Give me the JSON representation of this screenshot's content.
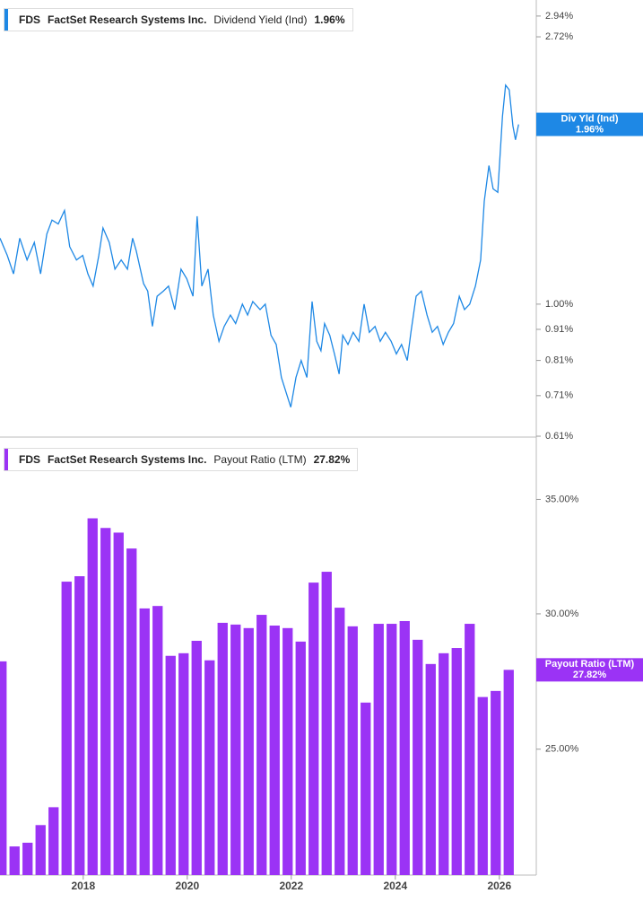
{
  "chart_data": [
    {
      "type": "line",
      "ticker": "FDS",
      "company": "FactSet Research Systems Inc.",
      "tag_label": "Div Yld (Ind)",
      "current_value_label": "1.96%",
      "log_y": true,
      "xlim": [
        2016.4,
        2026.71
      ],
      "ylim": [
        0.608,
        3.07
      ],
      "yticks": [
        {
          "value": 2.94,
          "label": "2.94%"
        },
        {
          "value": 2.72,
          "label": "2.72%"
        },
        {
          "value": 1.0,
          "label": "1.00%"
        },
        {
          "value": 0.91,
          "label": "0.91%"
        },
        {
          "value": 0.81,
          "label": "0.81%"
        },
        {
          "value": 0.71,
          "label": "0.71%"
        },
        {
          "value": 0.61,
          "label": "0.61%"
        }
      ],
      "x": [
        2016.4,
        2016.54,
        2016.66,
        2016.78,
        2016.92,
        2017.06,
        2017.18,
        2017.3,
        2017.4,
        2017.52,
        2017.64,
        2017.74,
        2017.87,
        2017.99,
        2018.09,
        2018.19,
        2018.3,
        2018.38,
        2018.5,
        2018.61,
        2018.73,
        2018.85,
        2018.95,
        2019.02,
        2019.16,
        2019.24,
        2019.33,
        2019.42,
        2019.54,
        2019.64,
        2019.76,
        2019.88,
        2019.99,
        2020.11,
        2020.19,
        2020.28,
        2020.4,
        2020.5,
        2020.61,
        2020.71,
        2020.83,
        2020.93,
        2021.06,
        2021.16,
        2021.26,
        2021.4,
        2021.5,
        2021.61,
        2021.71,
        2021.81,
        2021.92,
        2021.99,
        2022.09,
        2022.19,
        2022.3,
        2022.4,
        2022.49,
        2022.57,
        2022.64,
        2022.74,
        2022.83,
        2022.92,
        2022.99,
        2023.09,
        2023.19,
        2023.3,
        2023.4,
        2023.5,
        2023.61,
        2023.71,
        2023.81,
        2023.92,
        2024.02,
        2024.12,
        2024.23,
        2024.3,
        2024.4,
        2024.5,
        2024.61,
        2024.71,
        2024.81,
        2024.92,
        2025.02,
        2025.12,
        2025.23,
        2025.33,
        2025.43,
        2025.54,
        2025.64,
        2025.71,
        2025.8,
        2025.88,
        2025.97,
        2026.06,
        2026.12,
        2026.19,
        2026.26,
        2026.31,
        2026.37
      ],
      "series": [
        {
          "name": "Dividend Yield (Ind)",
          "color": "#1e88e5",
          "values": [
            1.28,
            1.2,
            1.12,
            1.28,
            1.18,
            1.26,
            1.12,
            1.3,
            1.37,
            1.35,
            1.42,
            1.24,
            1.18,
            1.2,
            1.12,
            1.07,
            1.2,
            1.33,
            1.26,
            1.14,
            1.18,
            1.14,
            1.28,
            1.22,
            1.08,
            1.05,
            0.92,
            1.03,
            1.05,
            1.07,
            0.98,
            1.14,
            1.1,
            1.03,
            1.39,
            1.07,
            1.14,
            0.96,
            0.87,
            0.92,
            0.96,
            0.93,
            1.0,
            0.96,
            1.01,
            0.98,
            1.0,
            0.89,
            0.86,
            0.76,
            0.71,
            0.68,
            0.76,
            0.81,
            0.76,
            1.01,
            0.87,
            0.84,
            0.93,
            0.89,
            0.83,
            0.77,
            0.89,
            0.86,
            0.9,
            0.87,
            1.0,
            0.9,
            0.92,
            0.87,
            0.9,
            0.87,
            0.83,
            0.86,
            0.81,
            0.9,
            1.03,
            1.05,
            0.96,
            0.9,
            0.92,
            0.86,
            0.9,
            0.93,
            1.03,
            0.98,
            1.0,
            1.07,
            1.18,
            1.47,
            1.68,
            1.54,
            1.52,
            2.02,
            2.27,
            2.23,
            1.95,
            1.85,
            1.96
          ]
        }
      ]
    },
    {
      "type": "bar",
      "ticker": "FDS",
      "company": "FactSet Research Systems Inc.",
      "tag_label": "Payout Ratio (LTM)",
      "current_value_label": "27.82%",
      "log_y": true,
      "xlim": [
        2016.4,
        2026.71
      ],
      "ylim": [
        21.1,
        37.7
      ],
      "yticks": [
        {
          "value": 35,
          "label": "35.00%"
        },
        {
          "value": 30,
          "label": "30.00%"
        },
        {
          "value": 25,
          "label": "25.00%"
        }
      ],
      "xticks": [
        2018,
        2020,
        2022,
        2024,
        2026
      ],
      "x": [
        2016.43,
        2016.68,
        2016.93,
        2017.18,
        2017.43,
        2017.68,
        2017.93,
        2018.18,
        2018.43,
        2018.68,
        2018.93,
        2019.18,
        2019.43,
        2019.68,
        2019.93,
        2020.18,
        2020.43,
        2020.68,
        2020.93,
        2021.18,
        2021.43,
        2021.68,
        2021.93,
        2022.18,
        2022.43,
        2022.68,
        2022.93,
        2023.18,
        2023.43,
        2023.68,
        2023.93,
        2024.18,
        2024.43,
        2024.68,
        2024.93,
        2025.18,
        2025.43,
        2025.68,
        2025.93,
        2026.18
      ],
      "series": [
        {
          "name": "Payout Ratio (LTM)",
          "color": "#9b33f5",
          "values": [
            28.14,
            21.93,
            22.04,
            22.57,
            23.12,
            31.33,
            31.56,
            34.12,
            33.68,
            33.47,
            32.76,
            30.22,
            30.32,
            28.35,
            28.45,
            28.93,
            28.18,
            29.64,
            29.57,
            29.43,
            29.96,
            29.53,
            29.43,
            28.9,
            31.29,
            31.75,
            30.25,
            29.5,
            26.62,
            29.6,
            29.6,
            29.71,
            28.97,
            28.04,
            28.45,
            28.65,
            29.6,
            26.82,
            27.04,
            27.82
          ]
        }
      ]
    }
  ]
}
